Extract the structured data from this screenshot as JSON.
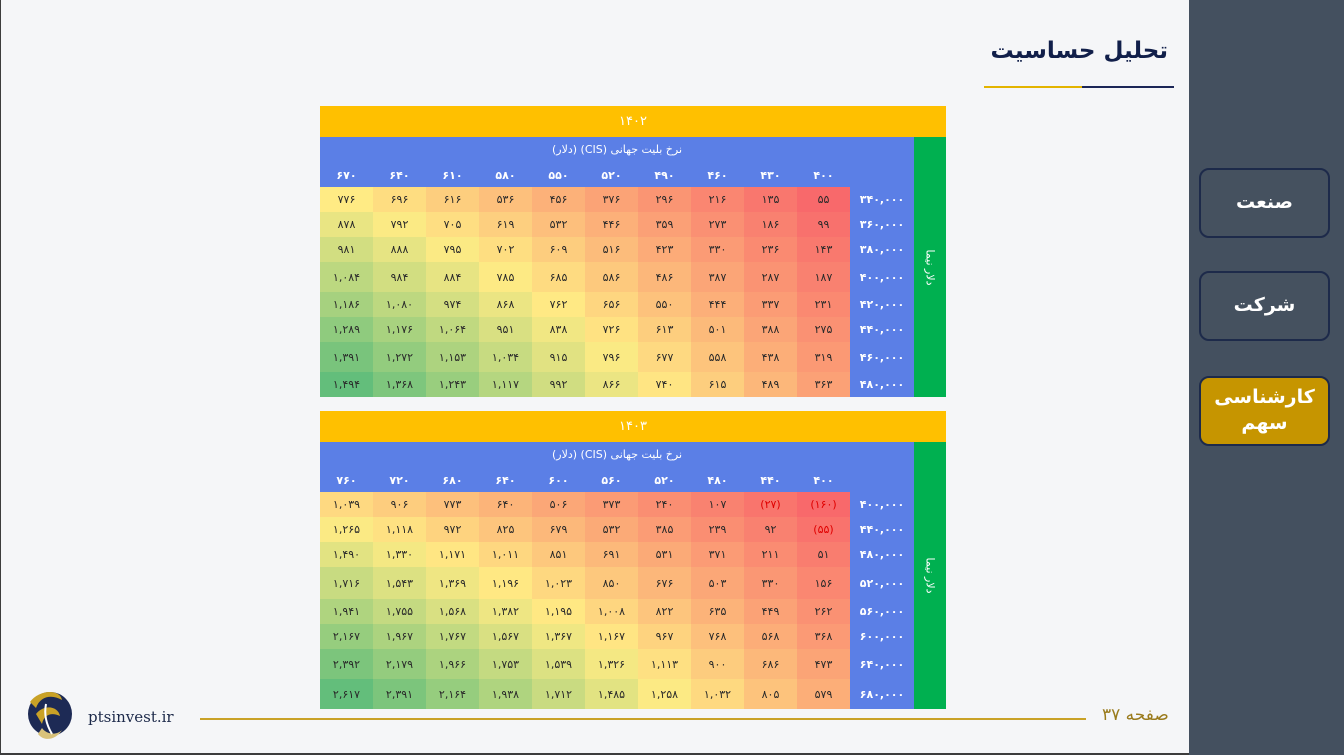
{
  "page": {
    "title": "تحلیل حساسیت",
    "page_number": "صفحه ۳۷",
    "website": "ptsinvest.ir"
  },
  "sidebar": {
    "items": [
      {
        "label": "صنعت",
        "active": false
      },
      {
        "label": "شرکت",
        "active": false
      },
      {
        "label": "کارشناسی سهم",
        "active": true
      }
    ]
  },
  "colors": {
    "year_band": "#ffc000",
    "header": "#5b7fe6",
    "side_band": "#00b050",
    "low": "#f8696b",
    "mid": "#ffeb84",
    "high": "#63be7b",
    "negative_text": "#e00000"
  },
  "tables": [
    {
      "year": "۱۴۰۲",
      "caption": "نرخ بلیت جهانی (CIS) (دلار)",
      "side_label": "دلار نیما",
      "columns": [
        "۴۰۰",
        "۴۳۰",
        "۴۶۰",
        "۴۹۰",
        "۵۲۰",
        "۵۵۰",
        "۵۸۰",
        "۶۱۰",
        "۶۴۰",
        "۶۷۰"
      ],
      "rows": [
        {
          "label": "۳۴۰,۰۰۰",
          "cells": [
            "۵۵",
            "۱۳۵",
            "۲۱۶",
            "۲۹۶",
            "۳۷۶",
            "۴۵۶",
            "۵۳۶",
            "۶۱۶",
            "۶۹۶",
            "۷۷۶"
          ]
        },
        {
          "label": "۳۶۰,۰۰۰",
          "cells": [
            "۹۹",
            "۱۸۶",
            "۲۷۳",
            "۳۵۹",
            "۴۴۶",
            "۵۳۲",
            "۶۱۹",
            "۷۰۵",
            "۷۹۲",
            "۸۷۸"
          ]
        },
        {
          "label": "۳۸۰,۰۰۰",
          "cells": [
            "۱۴۳",
            "۲۳۶",
            "۳۳۰",
            "۴۲۳",
            "۵۱۶",
            "۶۰۹",
            "۷۰۲",
            "۷۹۵",
            "۸۸۸",
            "۹۸۱"
          ]
        },
        {
          "label": "۴۰۰,۰۰۰",
          "cells": [
            "۱۸۷",
            "۲۸۷",
            "۳۸۷",
            "۴۸۶",
            "۵۸۶",
            "۶۸۵",
            "۷۸۵",
            "۸۸۴",
            "۹۸۴",
            "۱,۰۸۴"
          ]
        },
        {
          "label": "۴۲۰,۰۰۰",
          "cells": [
            "۲۳۱",
            "۳۳۷",
            "۴۴۴",
            "۵۵۰",
            "۶۵۶",
            "۷۶۲",
            "۸۶۸",
            "۹۷۴",
            "۱,۰۸۰",
            "۱,۱۸۶"
          ]
        },
        {
          "label": "۴۴۰,۰۰۰",
          "cells": [
            "۲۷۵",
            "۳۸۸",
            "۵۰۱",
            "۶۱۳",
            "۷۲۶",
            "۸۳۸",
            "۹۵۱",
            "۱,۰۶۴",
            "۱,۱۷۶",
            "۱,۲۸۹"
          ]
        },
        {
          "label": "۴۶۰,۰۰۰",
          "cells": [
            "۳۱۹",
            "۴۳۸",
            "۵۵۸",
            "۶۷۷",
            "۷۹۶",
            "۹۱۵",
            "۱,۰۳۴",
            "۱,۱۵۳",
            "۱,۲۷۲",
            "۱,۳۹۱"
          ]
        },
        {
          "label": "۴۸۰,۰۰۰",
          "cells": [
            "۳۶۳",
            "۴۸۹",
            "۶۱۵",
            "۷۴۰",
            "۸۶۶",
            "۹۹۲",
            "۱,۱۱۷",
            "۱,۲۴۳",
            "۱,۳۶۸",
            "۱,۴۹۴"
          ]
        }
      ]
    },
    {
      "year": "۱۴۰۳",
      "caption": "نرخ بلیت جهانی (CIS) (دلار)",
      "side_label": "دلار نیما",
      "columns": [
        "۴۰۰",
        "۴۴۰",
        "۴۸۰",
        "۵۲۰",
        "۵۶۰",
        "۶۰۰",
        "۶۴۰",
        "۶۸۰",
        "۷۲۰",
        "۷۶۰"
      ],
      "rows": [
        {
          "label": "۴۰۰,۰۰۰",
          "cells": [
            "(۱۶۰)",
            "(۲۷)",
            "۱۰۷",
            "۲۴۰",
            "۳۷۳",
            "۵۰۶",
            "۶۴۰",
            "۷۷۳",
            "۹۰۶",
            "۱,۰۳۹"
          ]
        },
        {
          "label": "۴۴۰,۰۰۰",
          "cells": [
            "(۵۵)",
            "۹۲",
            "۲۳۹",
            "۳۸۵",
            "۵۳۲",
            "۶۷۹",
            "۸۲۵",
            "۹۷۲",
            "۱,۱۱۸",
            "۱,۲۶۵"
          ]
        },
        {
          "label": "۴۸۰,۰۰۰",
          "cells": [
            "۵۱",
            "۲۱۱",
            "۳۷۱",
            "۵۳۱",
            "۶۹۱",
            "۸۵۱",
            "۱,۰۱۱",
            "۱,۱۷۱",
            "۱,۳۳۰",
            "۱,۴۹۰"
          ]
        },
        {
          "label": "۵۲۰,۰۰۰",
          "cells": [
            "۱۵۶",
            "۳۳۰",
            "۵۰۳",
            "۶۷۶",
            "۸۵۰",
            "۱,۰۲۳",
            "۱,۱۹۶",
            "۱,۳۶۹",
            "۱,۵۴۳",
            "۱,۷۱۶"
          ]
        },
        {
          "label": "۵۶۰,۰۰۰",
          "cells": [
            "۲۶۲",
            "۴۴۹",
            "۶۳۵",
            "۸۲۲",
            "۱,۰۰۸",
            "۱,۱۹۵",
            "۱,۳۸۲",
            "۱,۵۶۸",
            "۱,۷۵۵",
            "۱,۹۴۱"
          ]
        },
        {
          "label": "۶۰۰,۰۰۰",
          "cells": [
            "۳۶۸",
            "۵۶۸",
            "۷۶۸",
            "۹۶۷",
            "۱,۱۶۷",
            "۱,۳۶۷",
            "۱,۵۶۷",
            "۱,۷۶۷",
            "۱,۹۶۷",
            "۲,۱۶۷"
          ]
        },
        {
          "label": "۶۴۰,۰۰۰",
          "cells": [
            "۴۷۳",
            "۶۸۶",
            "۹۰۰",
            "۱,۱۱۳",
            "۱,۳۲۶",
            "۱,۵۳۹",
            "۱,۷۵۳",
            "۱,۹۶۶",
            "۲,۱۷۹",
            "۲,۳۹۲"
          ]
        },
        {
          "label": "۶۸۰,۰۰۰",
          "cells": [
            "۵۷۹",
            "۸۰۵",
            "۱,۰۳۲",
            "۱,۲۵۸",
            "۱,۴۸۵",
            "۱,۷۱۲",
            "۱,۹۳۸",
            "۲,۱۶۴",
            "۲,۳۹۱",
            "۲,۶۱۷"
          ]
        }
      ]
    }
  ]
}
